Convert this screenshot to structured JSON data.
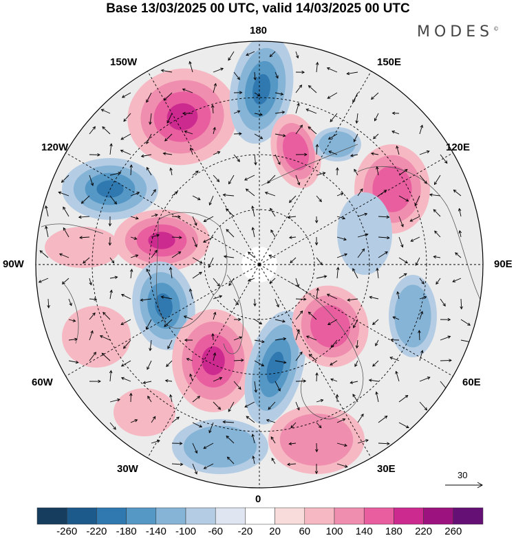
{
  "title": "Base 13/03/2025 00 UTC, valid 14/03/2025 00 UTC",
  "brand": "MODES",
  "brand_mark": "©",
  "lon_labels": {
    "top": "180",
    "bottom": "0",
    "left": "90W",
    "right": "90E",
    "upper_left_1": "150W",
    "upper_left_2": "120W",
    "upper_right_1": "150E",
    "upper_right_2": "120E",
    "lower_left_1": "60W",
    "lower_left_2": "30W",
    "lower_right_1": "60E",
    "lower_right_2": "30E"
  },
  "reference_vector": "30",
  "colorbar": {
    "ticks": [
      "-260",
      "-220",
      "-180",
      "-140",
      "-100",
      "-60",
      "-20",
      "20",
      "60",
      "100",
      "140",
      "180",
      "220",
      "260"
    ],
    "colors": [
      "#173d5e",
      "#1d5a8c",
      "#2f78b0",
      "#5597c5",
      "#86b4d6",
      "#b5cde4",
      "#dfe5f1",
      "#ffffff",
      "#f8dcdc",
      "#f6b9c3",
      "#f08eaf",
      "#e85e9f",
      "#cc2a8e",
      "#9c137f",
      "#641075"
    ]
  },
  "map_layers": {
    "highs": [
      "#f6b9c3",
      "#f08eaf",
      "#e85e9f",
      "#cc2a8e"
    ],
    "lows": [
      "#b5cde4",
      "#86b4d6",
      "#5597c5",
      "#2f78b0"
    ],
    "neutral": "#ececec"
  }
}
